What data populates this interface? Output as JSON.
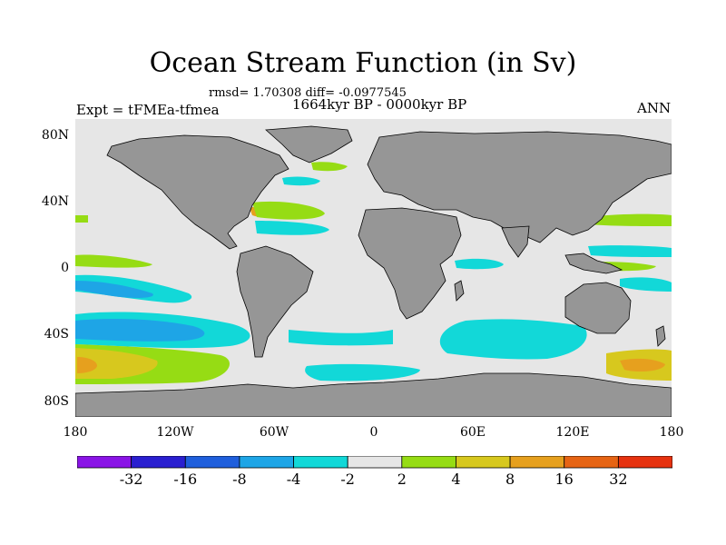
{
  "title": "Ocean Stream Function (in Sv)",
  "stats": "rmsd= 1.70308 diff= -0.0977545",
  "period": "1664kyr BP - 0000kyr BP",
  "experiment": "Expt = tFMEa-tfmea",
  "season": "ANN",
  "lat_labels": [
    "80N",
    "40N",
    "0",
    "40S",
    "80S"
  ],
  "lon_labels": [
    "180",
    "120W",
    "60W",
    "0",
    "60E",
    "120E",
    "180"
  ],
  "colorbar": {
    "colors": [
      "#8a14e6",
      "#2a1fd0",
      "#1f5fdc",
      "#1ea5e6",
      "#12d8d8",
      "#e6e6e6",
      "#96dc14",
      "#d7c81e",
      "#e6a01e",
      "#e66414",
      "#e6320f"
    ],
    "labels": [
      "-32",
      "-16",
      "-8",
      "-4",
      "-2",
      "2",
      "4",
      "8",
      "16",
      "32"
    ]
  },
  "map_colors": {
    "land": "#969696",
    "ocean": "#e6e6e6"
  }
}
